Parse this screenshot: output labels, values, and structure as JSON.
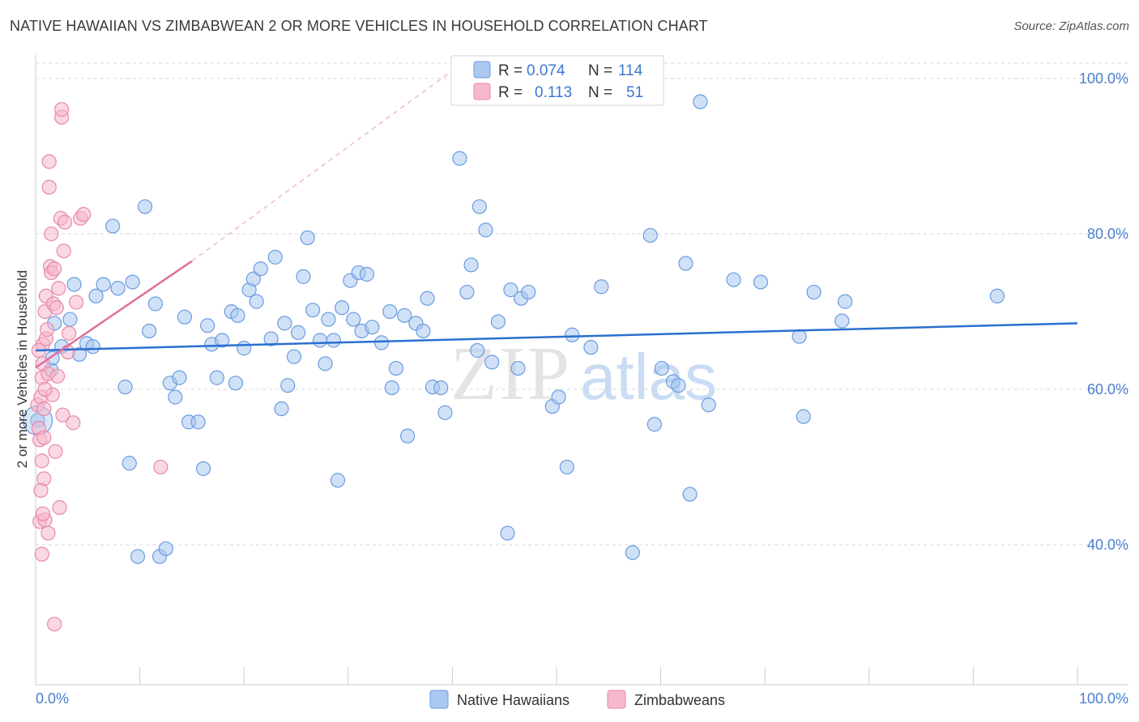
{
  "title": "NATIVE HAWAIIAN VS ZIMBABWEAN 2 OR MORE VEHICLES IN HOUSEHOLD CORRELATION CHART",
  "source": "Source: ZipAtlas.com",
  "colors": {
    "blue_fill": "#aac8f0",
    "blue_stroke": "#6a9be0",
    "blue_line": "#2b6fd0",
    "pink_fill": "#f6b8cc",
    "pink_stroke": "#e888a8",
    "pink_line": "#e0709a",
    "grid": "#d8d8d8",
    "axis_label": "#4a7fd0"
  },
  "legend": {
    "r_label": "R =",
    "n_label": "N =",
    "series": [
      {
        "r": "0.074",
        "n": "114"
      },
      {
        "r": "0.113",
        "n": "51"
      }
    ]
  },
  "watermark": {
    "zip": "ZIP",
    "atlas": "atlas"
  },
  "chart_data": {
    "type": "scatter",
    "xlabel": "",
    "ylabel": "2 or more Vehicles in Household",
    "xlim": [
      0,
      100
    ],
    "ylim": [
      22,
      103
    ],
    "x_tick_labels": [
      "0.0%",
      "100.0%"
    ],
    "y_ticks": [
      40,
      60,
      80,
      100
    ],
    "y_tick_labels": [
      "40.0%",
      "60.0%",
      "80.0%",
      "100.0%"
    ],
    "grid": true,
    "legend_position": "bottom-center",
    "series": [
      {
        "name": "Native Hawaiians",
        "trend": {
          "x0": 0,
          "y0": 65.0,
          "x1": 100,
          "y1": 68.5
        },
        "points": [
          [
            0.2,
            56
          ],
          [
            1.5,
            62.5
          ],
          [
            1.6,
            64
          ],
          [
            1.8,
            68.5
          ],
          [
            2.5,
            65.5
          ],
          [
            3.3,
            69
          ],
          [
            3.7,
            73.5
          ],
          [
            4.2,
            64.5
          ],
          [
            4.9,
            65.9
          ],
          [
            5.5,
            65.5
          ],
          [
            5.8,
            72
          ],
          [
            6.5,
            73.5
          ],
          [
            7.4,
            81
          ],
          [
            7.9,
            73
          ],
          [
            8.6,
            60.3
          ],
          [
            9.0,
            50.5
          ],
          [
            9.3,
            73.8
          ],
          [
            9.8,
            38.5
          ],
          [
            10.5,
            83.5
          ],
          [
            10.9,
            67.5
          ],
          [
            11.5,
            71
          ],
          [
            11.9,
            38.5
          ],
          [
            12.5,
            39.5
          ],
          [
            12.9,
            60.8
          ],
          [
            13.4,
            59
          ],
          [
            13.8,
            61.5
          ],
          [
            14.3,
            69.3
          ],
          [
            14.7,
            55.8
          ],
          [
            15.6,
            55.8
          ],
          [
            16.1,
            49.8
          ],
          [
            16.5,
            68.2
          ],
          [
            16.9,
            65.8
          ],
          [
            17.4,
            61.5
          ],
          [
            17.9,
            66.3
          ],
          [
            18.8,
            70
          ],
          [
            19.2,
            60.8
          ],
          [
            19.4,
            69.5
          ],
          [
            20.0,
            65.3
          ],
          [
            20.5,
            72.8
          ],
          [
            20.9,
            74.2
          ],
          [
            21.2,
            71.3
          ],
          [
            21.6,
            75.5
          ],
          [
            22.6,
            66.5
          ],
          [
            23.0,
            77
          ],
          [
            23.6,
            57.5
          ],
          [
            23.9,
            68.5
          ],
          [
            24.2,
            60.5
          ],
          [
            24.8,
            64.2
          ],
          [
            25.2,
            67.3
          ],
          [
            25.7,
            74.5
          ],
          [
            26.1,
            79.5
          ],
          [
            26.6,
            70.2
          ],
          [
            27.3,
            66.3
          ],
          [
            27.8,
            63.3
          ],
          [
            28.1,
            69
          ],
          [
            28.6,
            66.3
          ],
          [
            29.0,
            48.3
          ],
          [
            29.4,
            70.5
          ],
          [
            30.2,
            74
          ],
          [
            30.5,
            69
          ],
          [
            31.0,
            75
          ],
          [
            31.3,
            67.5
          ],
          [
            31.8,
            74.8
          ],
          [
            32.3,
            68
          ],
          [
            33.2,
            66
          ],
          [
            34.0,
            70
          ],
          [
            34.2,
            60.2
          ],
          [
            34.6,
            62.7
          ],
          [
            35.4,
            69.5
          ],
          [
            35.7,
            54
          ],
          [
            36.5,
            68.5
          ],
          [
            37.2,
            67.5
          ],
          [
            37.6,
            71.7
          ],
          [
            38.1,
            60.3
          ],
          [
            38.9,
            60.2
          ],
          [
            39.3,
            57
          ],
          [
            40.7,
            89.7
          ],
          [
            41.4,
            72.5
          ],
          [
            41.8,
            76
          ],
          [
            42.4,
            65
          ],
          [
            42.6,
            83.5
          ],
          [
            43.2,
            80.5
          ],
          [
            43.8,
            63.5
          ],
          [
            44.4,
            68.7
          ],
          [
            45.3,
            41.5
          ],
          [
            45.6,
            72.8
          ],
          [
            46.3,
            62.7
          ],
          [
            46.6,
            71.7
          ],
          [
            47.3,
            72.5
          ],
          [
            49.6,
            57.8
          ],
          [
            50.2,
            59
          ],
          [
            51.5,
            67
          ],
          [
            53.3,
            65.4
          ],
          [
            54.3,
            73.2
          ],
          [
            57.3,
            39
          ],
          [
            59.0,
            79.8
          ],
          [
            59.4,
            55.5
          ],
          [
            60.1,
            62.7
          ],
          [
            61.2,
            61
          ],
          [
            61.7,
            60.5
          ],
          [
            62.4,
            76.2
          ],
          [
            62.8,
            46.5
          ],
          [
            63.8,
            97
          ],
          [
            64.6,
            58
          ],
          [
            67.0,
            74.1
          ],
          [
            69.6,
            73.8
          ],
          [
            73.3,
            66.8
          ],
          [
            73.7,
            56.5
          ],
          [
            74.7,
            72.5
          ],
          [
            77.4,
            68.8
          ],
          [
            77.7,
            71.3
          ],
          [
            92.3,
            72
          ],
          [
            51.0,
            50
          ]
        ]
      },
      {
        "name": "Zimbabweans",
        "trend": {
          "x0": 0,
          "y0": 62.8,
          "x1": 15,
          "y1": 76.5
        },
        "trend_extension": {
          "x0": 15,
          "y0": 76.5,
          "x1": 40,
          "y1": 101
        },
        "points": [
          [
            0.2,
            58
          ],
          [
            0.3,
            55
          ],
          [
            0.4,
            53.5
          ],
          [
            0.4,
            43
          ],
          [
            0.5,
            59
          ],
          [
            0.6,
            61.5
          ],
          [
            0.6,
            50.8
          ],
          [
            0.6,
            38.8
          ],
          [
            0.7,
            65.8
          ],
          [
            0.7,
            63.3
          ],
          [
            0.8,
            57.5
          ],
          [
            0.8,
            53.8
          ],
          [
            0.8,
            48.5
          ],
          [
            0.9,
            70
          ],
          [
            0.9,
            43.2
          ],
          [
            1.0,
            72
          ],
          [
            1.0,
            66.5
          ],
          [
            1.1,
            67.7
          ],
          [
            1.2,
            62
          ],
          [
            1.2,
            41.5
          ],
          [
            1.3,
            89.3
          ],
          [
            1.3,
            86
          ],
          [
            1.4,
            75.8
          ],
          [
            1.5,
            80
          ],
          [
            1.5,
            75
          ],
          [
            1.6,
            59.3
          ],
          [
            1.7,
            71
          ],
          [
            1.8,
            75.5
          ],
          [
            1.8,
            29.8
          ],
          [
            1.9,
            52
          ],
          [
            2.0,
            70.5
          ],
          [
            2.1,
            61.7
          ],
          [
            2.2,
            73
          ],
          [
            2.3,
            44.8
          ],
          [
            2.4,
            82
          ],
          [
            2.5,
            95
          ],
          [
            2.5,
            96
          ],
          [
            2.6,
            56.7
          ],
          [
            2.7,
            77.8
          ],
          [
            2.8,
            81.5
          ],
          [
            3.1,
            64.8
          ],
          [
            3.2,
            67.2
          ],
          [
            3.6,
            55.7
          ],
          [
            3.9,
            71.2
          ],
          [
            4.3,
            82
          ],
          [
            4.6,
            82.5
          ],
          [
            12.0,
            50
          ],
          [
            0.3,
            65
          ],
          [
            0.5,
            47
          ],
          [
            0.7,
            44
          ],
          [
            0.9,
            60
          ]
        ]
      }
    ]
  },
  "bottom_legend": [
    {
      "label": "Native Hawaiians"
    },
    {
      "label": "Zimbabweans"
    }
  ]
}
